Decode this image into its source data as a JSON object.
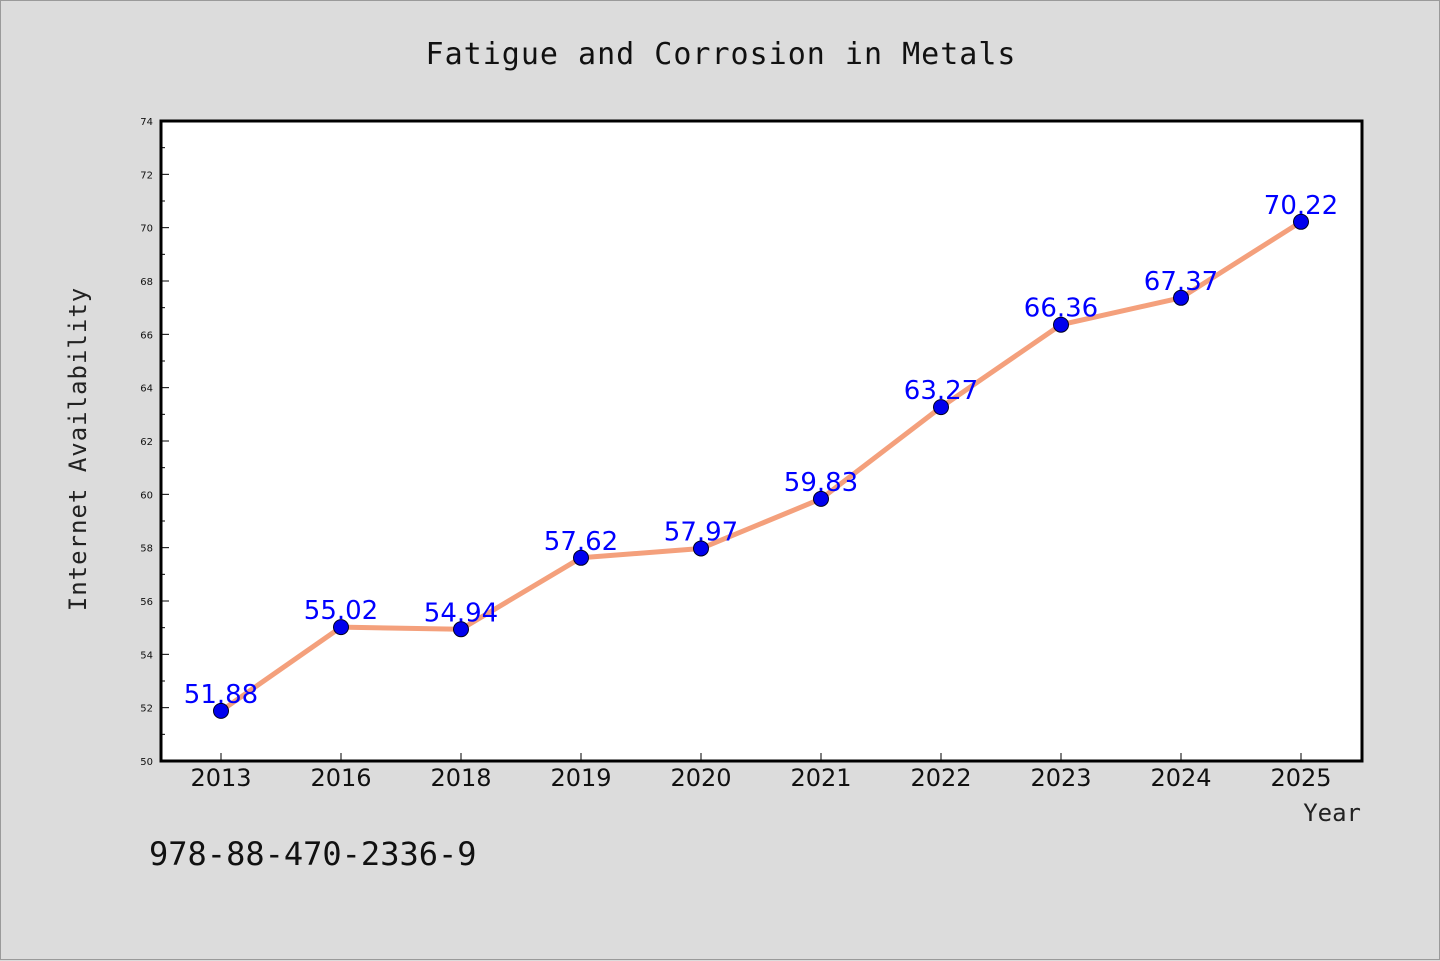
{
  "chart_data": {
    "type": "line",
    "title": "Fatigue and Corrosion in Metals",
    "xlabel": "Year",
    "ylabel": "Internet Availability",
    "categories": [
      "2013",
      "2016",
      "2018",
      "2019",
      "2020",
      "2021",
      "2022",
      "2023",
      "2024",
      "2025"
    ],
    "series": [
      {
        "values": [
          51.88,
          55.02,
          54.94,
          57.62,
          57.97,
          59.83,
          63.27,
          66.36,
          67.37,
          70.22
        ],
        "labels": [
          "51.88",
          "55.02",
          "54.94",
          "57.62",
          "57.97",
          "59.83",
          "63.27",
          "66.36",
          "67.37",
          "70.22"
        ],
        "line_color": "#f4a07c",
        "marker_color": "#0000ee"
      }
    ],
    "ylim": [
      50,
      74
    ],
    "yticks": [
      50,
      52,
      54,
      56,
      58,
      60,
      62,
      64,
      66,
      68,
      70,
      72,
      74
    ],
    "grid": false,
    "legend": "none"
  },
  "footer_text": "978-88-470-2336-9",
  "colors": {
    "background": "#dcdcdc",
    "plot_background": "#ffffff",
    "label_color": "#0000ff"
  }
}
